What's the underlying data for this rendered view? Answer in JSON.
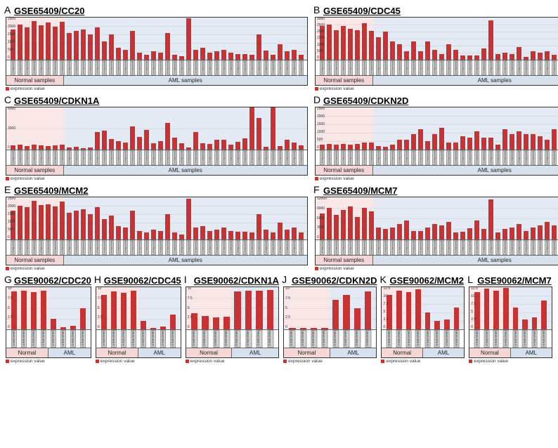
{
  "colors": {
    "bar": "#c83232",
    "normal_bg": "rgba(220,120,120,0.18)",
    "aml_bg": "rgba(130,160,200,0.22)",
    "normal_label_bg": "rgba(220,120,120,0.30)",
    "aml_label_bg": "rgba(130,160,200,0.32)",
    "xlabel_bg": "#d0d0d0"
  },
  "legend_text": "expression value",
  "bigpanels": [
    {
      "letter": "A",
      "title": "GSE65409/CC20",
      "ymax": 2500,
      "ystep": 500,
      "normal_n": 8,
      "total_n": 42,
      "normal_label": "Normal samples",
      "aml_label": "AML samples",
      "values": [
        1800,
        2100,
        1900,
        2300,
        2050,
        2200,
        1950,
        2250,
        1600,
        1700,
        1800,
        1500,
        1900,
        1100,
        1500,
        700,
        600,
        1700,
        400,
        300,
        500,
        400,
        1600,
        300,
        200,
        2450,
        600,
        700,
        400,
        500,
        600,
        400,
        350,
        350,
        300,
        1500,
        550,
        300,
        900,
        500,
        600,
        300
      ],
      "xlabels_prefix": "GSM159",
      "xlabels_start": 5700
    },
    {
      "letter": "B",
      "title": "GSE65409/CDC45",
      "ymax": 3000,
      "ystep": 500,
      "normal_n": 8,
      "total_n": 42,
      "normal_label": "Normal samples",
      "aml_label": "AML samples",
      "values": [
        2400,
        2500,
        2100,
        2400,
        2200,
        2100,
        2600,
        2050,
        1600,
        2000,
        1300,
        1100,
        600,
        1300,
        600,
        1300,
        700,
        400,
        1100,
        700,
        300,
        300,
        300,
        800,
        2800,
        400,
        500,
        400,
        900,
        200,
        600,
        500,
        600,
        350,
        400,
        900,
        400,
        400,
        700,
        500,
        400,
        300
      ],
      "xlabels_prefix": "GSM159",
      "xlabels_start": 5700
    },
    {
      "letter": "C",
      "title": "GSE65409/CDKN1A",
      "ymax": 6000,
      "ystep": 3000,
      "normal_n": 8,
      "total_n": 42,
      "normal_label": "Normal samples",
      "aml_label": "AML samples",
      "values": [
        600,
        700,
        500,
        700,
        650,
        550,
        600,
        700,
        300,
        400,
        200,
        300,
        2500,
        2700,
        1500,
        1200,
        1000,
        3300,
        1800,
        2800,
        900,
        1200,
        3800,
        1700,
        900,
        300,
        2500,
        900,
        800,
        1400,
        1400,
        700,
        1100,
        1600,
        6000,
        4500,
        400,
        6200,
        500,
        1400,
        1000,
        600
      ],
      "xlabels_prefix": "GSM159",
      "xlabels_start": 5700
    },
    {
      "letter": "D",
      "title": "GSE65409/CDKN2D",
      "ymax": 2500,
      "ystep": 500,
      "normal_n": 8,
      "total_n": 42,
      "normal_label": "Normal samples",
      "aml_label": "AML samples",
      "values": [
        300,
        350,
        300,
        350,
        300,
        320,
        400,
        420,
        200,
        180,
        300,
        600,
        600,
        900,
        1200,
        520,
        900,
        1300,
        400,
        400,
        800,
        700,
        1100,
        700,
        700,
        300,
        1200,
        900,
        1100,
        900,
        900,
        800,
        600,
        1200,
        1700,
        1000,
        800,
        1600,
        700,
        1100,
        2200,
        2300
      ],
      "xlabels_prefix": "GSM159",
      "xlabels_start": 5700
    },
    {
      "letter": "E",
      "title": "GSE65409/MCM2",
      "ymax": 2500,
      "ystep": 500,
      "normal_n": 8,
      "total_n": 42,
      "normal_label": "Normal samples",
      "aml_label": "AML samples",
      "values": [
        1700,
        2000,
        1900,
        2300,
        2050,
        2100,
        1950,
        2250,
        1600,
        1700,
        1800,
        1500,
        1900,
        1200,
        1400,
        800,
        700,
        1700,
        500,
        400,
        600,
        500,
        1500,
        400,
        300,
        2400,
        700,
        800,
        500,
        600,
        700,
        500,
        450,
        450,
        400,
        1500,
        600,
        400,
        1000,
        600,
        700,
        400
      ],
      "xlabels_prefix": "GSM159",
      "xlabels_start": 5700
    },
    {
      "letter": "F",
      "title": "GSE65409/MCM7",
      "ymax": 12000,
      "ystep": 3000,
      "normal_n": 8,
      "total_n": 42,
      "normal_label": "Normal samples",
      "aml_label": "AML samples",
      "values": [
        7500,
        9000,
        7000,
        8500,
        9500,
        6500,
        9000,
        8000,
        3500,
        3000,
        3500,
        4500,
        5500,
        2400,
        2500,
        3500,
        4500,
        4000,
        5000,
        2000,
        2200,
        3300,
        5500,
        3000,
        11500,
        2000,
        3000,
        3500,
        4500,
        2500,
        3500,
        4000,
        5000,
        4000,
        4000,
        3500,
        3500,
        3500,
        6000,
        3000,
        3500,
        3500
      ],
      "xlabels_prefix": "GSM159",
      "xlabels_start": 5700
    }
  ],
  "smallpanels": [
    {
      "letter": "G",
      "title": "GSE90062/CDC20",
      "ymax": 10,
      "ystep": 2.5,
      "normal_n": 4,
      "total_n": 8,
      "normal_label": "Normal",
      "aml_label": "AML",
      "values": [
        9.0,
        9.2,
        8.8,
        9.1,
        2.5,
        0.5,
        0.8,
        5.0
      ],
      "xlabels": [
        "GSM2396901",
        "GSM2396902",
        "GSM2396903",
        "GSM2396904",
        "GSM2396905",
        "GSM2396906",
        "GSM2396907",
        "GSM2396908"
      ]
    },
    {
      "letter": "H",
      "title": "GSE90062/CDC45",
      "ymax": 10,
      "ystep": 2.5,
      "normal_n": 4,
      "total_n": 8,
      "normal_label": "Normal",
      "aml_label": "AML",
      "values": [
        8.2,
        9.0,
        8.6,
        9.2,
        2.0,
        0.4,
        0.6,
        3.5
      ],
      "xlabels": [
        "GSM2396901",
        "GSM2396902",
        "GSM2396903",
        "GSM2396904",
        "GSM2396905",
        "GSM2396906",
        "GSM2396907",
        "GSM2396908"
      ]
    },
    {
      "letter": "I",
      "title": "GSE90062/CDKN1A",
      "ymax": 10,
      "ystep": 2.5,
      "normal_n": 4,
      "total_n": 8,
      "normal_label": "Normal",
      "aml_label": "AML",
      "values": [
        3.8,
        3.2,
        2.8,
        3.0,
        9.0,
        9.2,
        9.1,
        9.3
      ],
      "xlabels": [
        "GSM2396901",
        "GSM2396902",
        "GSM2396903",
        "GSM2396904",
        "GSM2396905",
        "GSM2396906",
        "GSM2396907",
        "GSM2396908"
      ]
    },
    {
      "letter": "J",
      "title": "GSE90062/CDKN2D",
      "ymax": 10,
      "ystep": 2.5,
      "normal_n": 4,
      "total_n": 8,
      "normal_label": "Normal",
      "aml_label": "AML",
      "values": [
        0.3,
        0.35,
        0.3,
        0.4,
        7.0,
        8.2,
        5.0,
        9.0
      ],
      "xlabels": [
        "GSM2396901",
        "GSM2396902",
        "GSM2396903",
        "GSM2396904",
        "GSM2396905",
        "GSM2396906",
        "GSM2396907",
        "GSM2396908"
      ]
    },
    {
      "letter": "K",
      "title": "GSE90062/MCM2",
      "ymax": 12.5,
      "ystep": 2.5,
      "normal_n": 4,
      "total_n": 8,
      "normal_label": "Normal",
      "aml_label": "AML",
      "values": [
        10.2,
        11.5,
        11.0,
        11.8,
        5.0,
        2.5,
        3.0,
        6.5
      ],
      "xlabels": [
        "GSM2396901",
        "GSM2396902",
        "GSM2396903",
        "GSM2396904",
        "GSM2396905",
        "GSM2396906",
        "GSM2396907",
        "GSM2396908"
      ]
    },
    {
      "letter": "L",
      "title": "GSE90062/MCM7",
      "ymax": 12.5,
      "ystep": 2.5,
      "normal_n": 4,
      "total_n": 8,
      "normal_label": "Normal",
      "aml_label": "AML",
      "values": [
        11.0,
        12.0,
        11.5,
        12.2,
        6.5,
        3.0,
        3.5,
        8.5
      ],
      "xlabels": [
        "GSM2396901",
        "GSM2396902",
        "GSM2396903",
        "GSM2396904",
        "GSM2396905",
        "GSM2396906",
        "GSM2396907",
        "GSM2396908"
      ]
    }
  ]
}
